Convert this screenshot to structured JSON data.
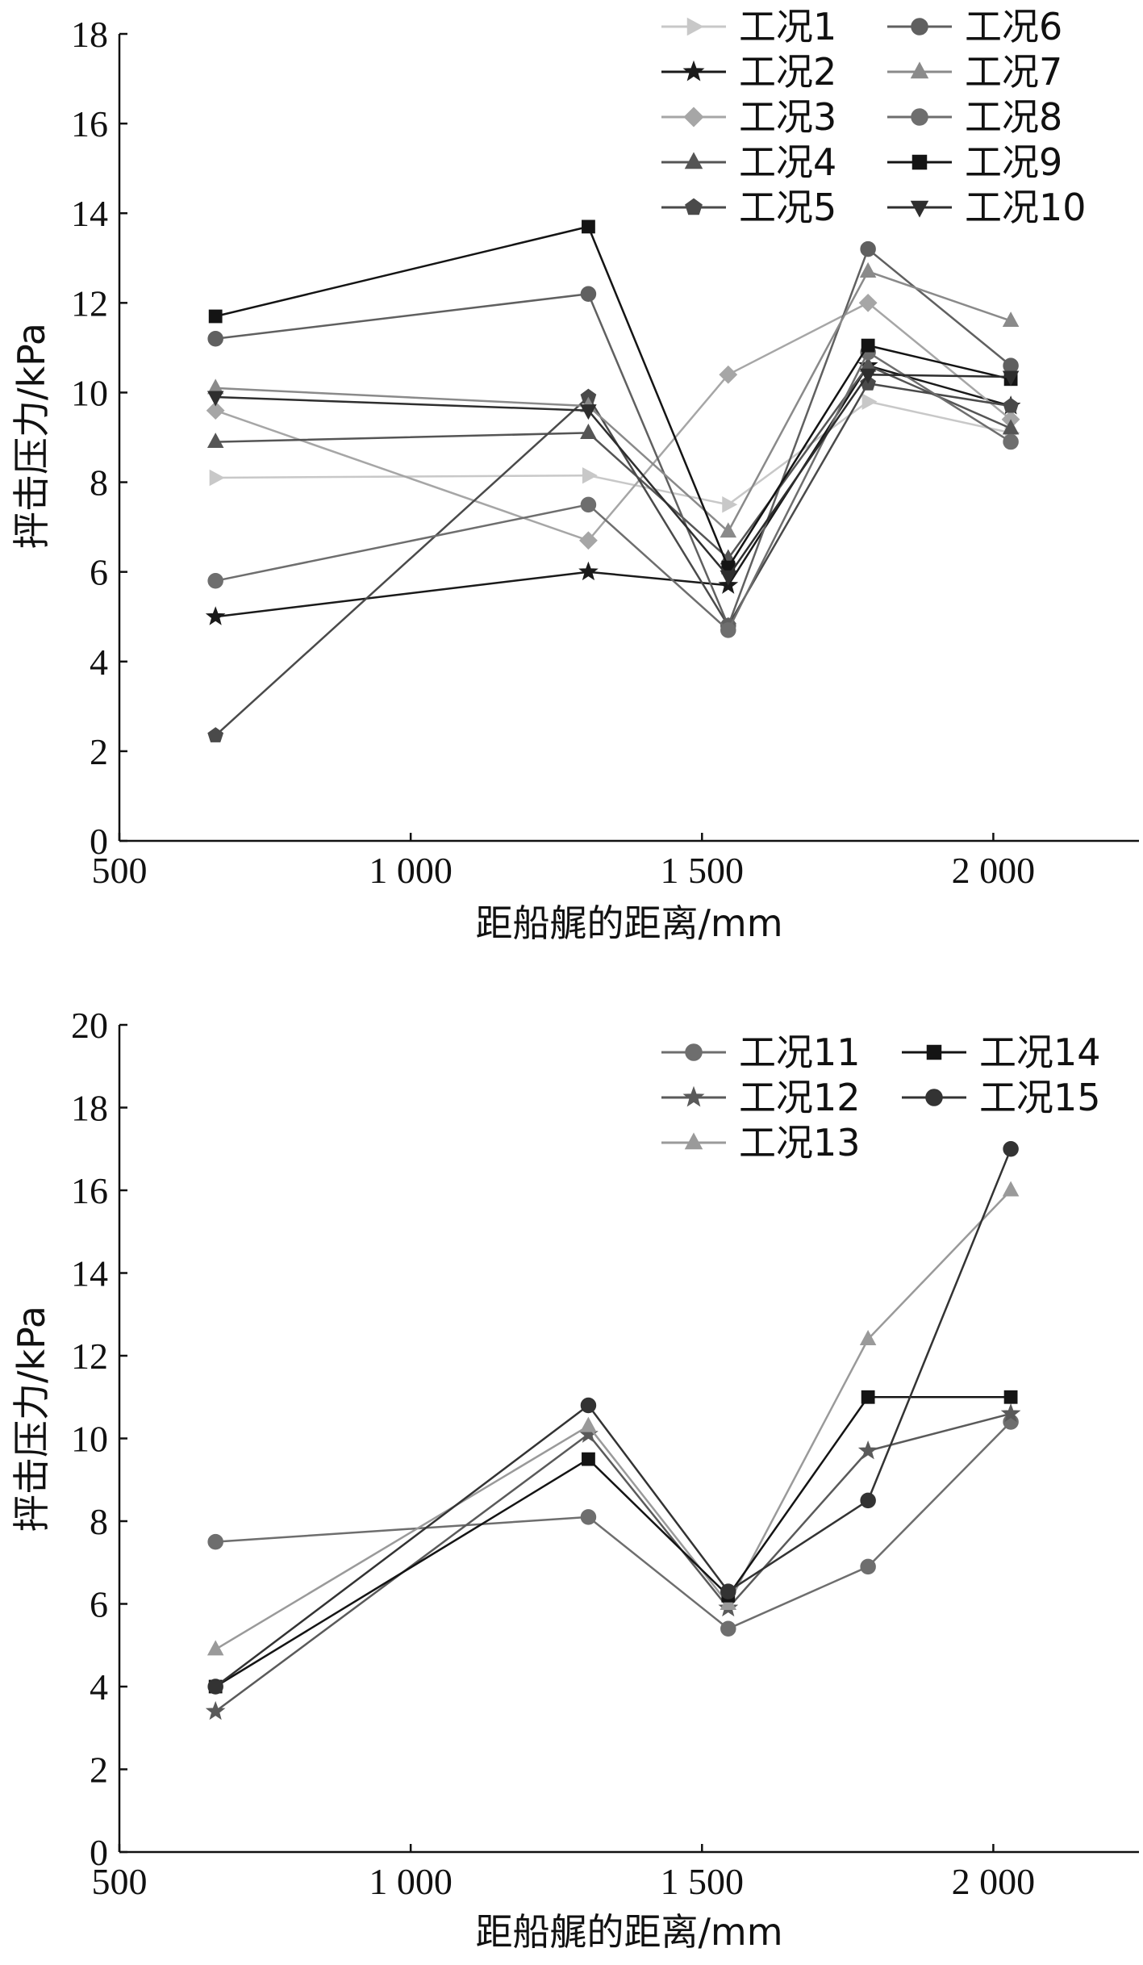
{
  "chart_data": [
    {
      "type": "line",
      "title": "",
      "xlabel": "距船艉的距离/mm",
      "ylabel": "抨击压力/kPa",
      "xlim": [
        500,
        2250
      ],
      "ylim": [
        0,
        18
      ],
      "xticks": [
        500,
        1000,
        1500,
        2000
      ],
      "xtick_labels": [
        "500",
        "1 000",
        "1 500",
        "2 000"
      ],
      "yticks": [
        0,
        2,
        4,
        6,
        8,
        10,
        12,
        14,
        16,
        18
      ],
      "ytick_labels": [
        "0",
        "2",
        "4",
        "6",
        "8",
        "10",
        "12",
        "14",
        "16",
        "18"
      ],
      "legend_position": "top-right",
      "x": [
        665,
        1305,
        1545,
        1785,
        2030
      ],
      "series": [
        {
          "name": "工况1",
          "marker": "triangle-right",
          "color": "#c8c8c8",
          "values": [
            8.1,
            8.15,
            7.5,
            9.8,
            9.1
          ]
        },
        {
          "name": "工况2",
          "marker": "star",
          "color": "#1a1a1a",
          "values": [
            5.0,
            6.0,
            5.7,
            10.6,
            9.7
          ]
        },
        {
          "name": "工况3",
          "marker": "diamond",
          "color": "#a6a6a6",
          "values": [
            9.6,
            6.7,
            10.4,
            12.0,
            9.4
          ]
        },
        {
          "name": "工况4",
          "marker": "triangle-up",
          "color": "#555555",
          "values": [
            8.9,
            9.1,
            6.3,
            10.6,
            9.2
          ]
        },
        {
          "name": "工况5",
          "marker": "pentagon",
          "color": "#4a4a4a",
          "values": [
            2.35,
            9.9,
            4.8,
            10.2,
            9.7
          ]
        },
        {
          "name": "工况6",
          "marker": "circle",
          "color": "#606060",
          "values": [
            11.2,
            12.2,
            4.8,
            13.2,
            10.6
          ]
        },
        {
          "name": "工况7",
          "marker": "triangle-up",
          "color": "#8a8a8a",
          "values": [
            10.1,
            9.7,
            6.9,
            12.7,
            11.6
          ]
        },
        {
          "name": "工况8",
          "marker": "circle",
          "color": "#6e6e6e",
          "values": [
            5.8,
            7.5,
            4.7,
            10.9,
            8.9
          ]
        },
        {
          "name": "工况9",
          "marker": "square",
          "color": "#141414",
          "values": [
            11.7,
            13.7,
            6.1,
            11.05,
            10.3
          ]
        },
        {
          "name": "工况10",
          "marker": "triangle-down",
          "color": "#2e2e2e",
          "values": [
            9.9,
            9.6,
            5.9,
            10.4,
            10.35
          ]
        }
      ]
    },
    {
      "type": "line",
      "title": "",
      "xlabel": "距船艉的距离/mm",
      "ylabel": "抨击压力/kPa",
      "xlim": [
        500,
        2250
      ],
      "ylim": [
        0,
        20
      ],
      "xticks": [
        500,
        1000,
        1500,
        2000
      ],
      "xtick_labels": [
        "500",
        "1 000",
        "1 500",
        "2 000"
      ],
      "yticks": [
        0,
        2,
        4,
        6,
        8,
        10,
        12,
        14,
        16,
        18,
        20
      ],
      "ytick_labels": [
        "0",
        "2",
        "4",
        "6",
        "8",
        "10",
        "12",
        "14",
        "16",
        "18",
        "20"
      ],
      "legend_position": "top-right",
      "x": [
        665,
        1305,
        1545,
        1785,
        2030
      ],
      "series": [
        {
          "name": "工况11",
          "marker": "circle",
          "color": "#6e6e6e",
          "values": [
            7.5,
            8.1,
            5.4,
            6.9,
            10.4
          ]
        },
        {
          "name": "工况12",
          "marker": "star",
          "color": "#5a5a5a",
          "values": [
            3.4,
            10.1,
            5.9,
            9.7,
            10.6
          ]
        },
        {
          "name": "工况13",
          "marker": "triangle-up",
          "color": "#9a9a9a",
          "values": [
            4.9,
            10.3,
            6.0,
            12.4,
            16.0
          ]
        },
        {
          "name": "工况14",
          "marker": "square",
          "color": "#141414",
          "values": [
            4.0,
            9.5,
            6.2,
            11.0,
            11.0
          ]
        },
        {
          "name": "工况15",
          "marker": "circle",
          "color": "#333333",
          "values": [
            4.0,
            10.8,
            6.3,
            8.5,
            17.0
          ]
        }
      ]
    }
  ]
}
